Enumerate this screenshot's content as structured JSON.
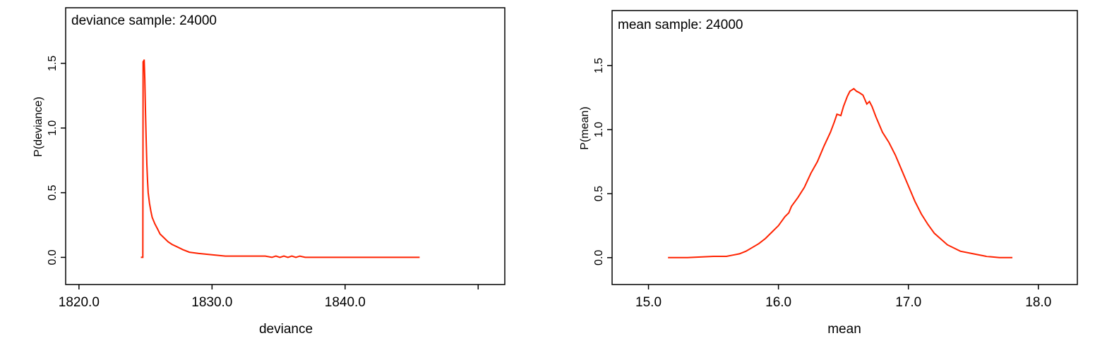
{
  "chart_data": [
    {
      "type": "line",
      "title": "deviance sample: 24000",
      "xlabel": "deviance",
      "ylabel": "P(deviance)",
      "xlim": [
        1819.0,
        1852.0
      ],
      "ylim": [
        -0.21,
        1.93
      ],
      "xticks": [
        1820.0,
        1830.0,
        1840.0,
        1850.0
      ],
      "xtick_labels": [
        "1820.0",
        "1830.0",
        "1840.0",
        ""
      ],
      "yticks": [
        0.0,
        0.5,
        1.0,
        1.5
      ],
      "ytick_labels": [
        "0.0",
        "0.5",
        "1.0",
        "1.5"
      ],
      "color": "#ff2200",
      "grid": false,
      "series": [
        {
          "x": [
            1824.65,
            1824.8,
            1824.82,
            1824.84,
            1824.87,
            1824.9,
            1824.95,
            1825.0,
            1825.05,
            1825.1,
            1825.15,
            1825.2,
            1825.3,
            1825.4,
            1825.5,
            1825.7,
            1825.9,
            1826.1,
            1826.4,
            1826.7,
            1827.0,
            1827.4,
            1827.8,
            1828.3,
            1829.0,
            1830.0,
            1831.0,
            1832.0,
            1833.0,
            1834.0,
            1834.5,
            1834.8,
            1835.1,
            1835.4,
            1835.7,
            1836.0,
            1836.3,
            1836.6,
            1837.0,
            1838.0,
            1840.0,
            1842.0,
            1844.0,
            1845.6
          ],
          "y": [
            0.0,
            0.0,
            1.51,
            1.52,
            1.5,
            1.53,
            1.38,
            1.12,
            0.92,
            0.72,
            0.6,
            0.5,
            0.42,
            0.36,
            0.31,
            0.26,
            0.22,
            0.18,
            0.15,
            0.12,
            0.1,
            0.08,
            0.06,
            0.04,
            0.03,
            0.02,
            0.01,
            0.01,
            0.01,
            0.01,
            0.0,
            0.01,
            0.0,
            0.01,
            0.0,
            0.01,
            0.0,
            0.01,
            0.0,
            0.0,
            0.0,
            0.0,
            0.0,
            0.0
          ]
        }
      ]
    },
    {
      "type": "line",
      "title": "mean sample: 24000",
      "xlabel": "mean",
      "ylabel": "P(mean)",
      "xlim": [
        14.72,
        18.3
      ],
      "ylim": [
        -0.21,
        1.93
      ],
      "xticks": [
        15.0,
        16.0,
        17.0,
        18.0
      ],
      "xtick_labels": [
        "15.0",
        "16.0",
        "17.0",
        "18.0"
      ],
      "yticks": [
        0.0,
        0.5,
        1.0,
        1.5
      ],
      "ytick_labels": [
        "0.0",
        "0.5",
        "1.0",
        "1.5"
      ],
      "color": "#ff2200",
      "grid": false,
      "series": [
        {
          "x": [
            15.15,
            15.3,
            15.5,
            15.6,
            15.65,
            15.7,
            15.75,
            15.8,
            15.85,
            15.9,
            15.95,
            16.0,
            16.05,
            16.08,
            16.1,
            16.15,
            16.2,
            16.25,
            16.3,
            16.35,
            16.4,
            16.43,
            16.45,
            16.48,
            16.5,
            16.53,
            16.55,
            16.58,
            16.6,
            16.62,
            16.65,
            16.68,
            16.7,
            16.72,
            16.75,
            16.8,
            16.85,
            16.9,
            16.95,
            17.0,
            17.05,
            17.1,
            17.15,
            17.2,
            17.3,
            17.4,
            17.5,
            17.6,
            17.7,
            17.8
          ],
          "y": [
            0.0,
            0.0,
            0.01,
            0.01,
            0.02,
            0.03,
            0.05,
            0.08,
            0.11,
            0.15,
            0.2,
            0.25,
            0.32,
            0.35,
            0.4,
            0.47,
            0.55,
            0.66,
            0.75,
            0.87,
            0.98,
            1.06,
            1.12,
            1.11,
            1.18,
            1.26,
            1.3,
            1.32,
            1.3,
            1.29,
            1.27,
            1.2,
            1.22,
            1.18,
            1.1,
            0.98,
            0.9,
            0.8,
            0.68,
            0.56,
            0.44,
            0.34,
            0.26,
            0.19,
            0.1,
            0.05,
            0.03,
            0.01,
            0.0,
            0.0
          ]
        }
      ]
    }
  ]
}
